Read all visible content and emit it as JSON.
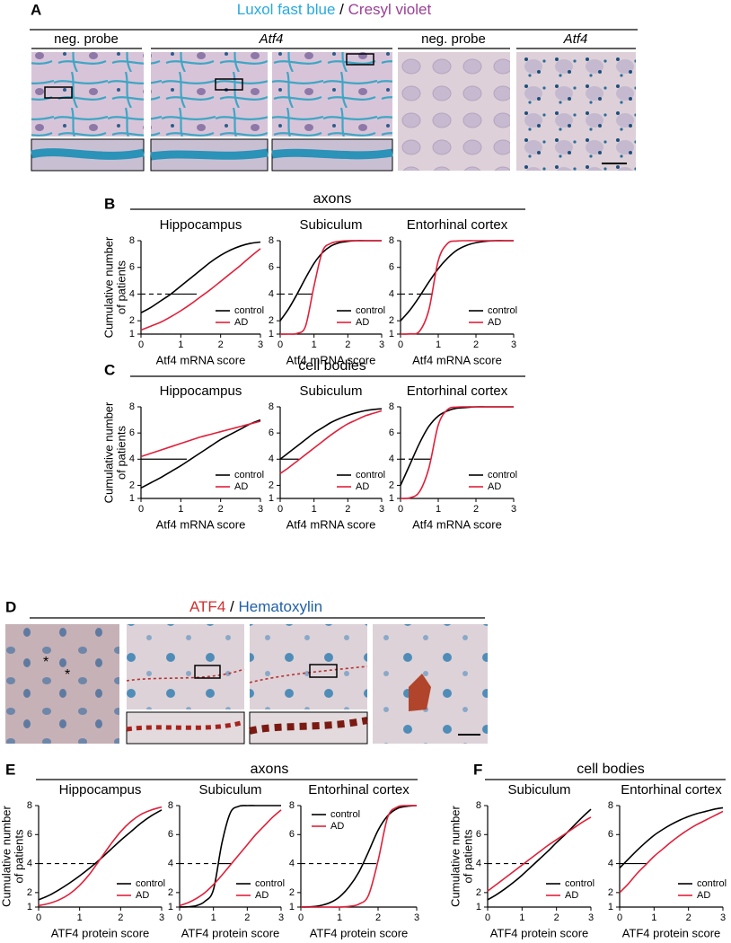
{
  "figure": {
    "panel_labels": [
      "A",
      "B",
      "C",
      "D",
      "E",
      "F"
    ],
    "A": {
      "stain": [
        "Luxol fast blue",
        "/",
        "Cresyl violet"
      ],
      "subheaders": [
        "neg. probe",
        "Atf4",
        "neg. probe",
        "Atf4"
      ]
    },
    "D": {
      "stain": [
        "ATF4",
        "/",
        "Hematoxylin"
      ],
      "annotations": [
        "*",
        "*"
      ]
    },
    "group_headers": [
      "axons",
      "cell bodies",
      "axons",
      "cell bodies"
    ]
  },
  "chart_data": [
    {
      "type": "line",
      "title": "Hippocampus",
      "xlabel": "Atf4 mRNA score",
      "ylabel": [
        "Cumulative number",
        "of patients"
      ],
      "x": [
        0,
        0.25,
        0.5,
        0.75,
        1,
        1.25,
        1.5,
        1.75,
        2,
        2.25,
        2.5,
        2.75,
        3
      ],
      "series": [
        {
          "name": "control",
          "color": "#000000",
          "values": [
            2.6,
            3.0,
            3.5,
            4.0,
            4.6,
            5.2,
            5.8,
            6.4,
            6.9,
            7.3,
            7.6,
            7.8,
            7.9
          ]
        },
        {
          "name": "AD",
          "color": "#e0203a",
          "values": [
            1.3,
            1.6,
            1.9,
            2.3,
            2.75,
            3.25,
            3.8,
            4.35,
            4.95,
            5.55,
            6.15,
            6.8,
            7.4
          ]
        }
      ],
      "median_line": {
        "y": 4,
        "x": [
          0,
          0.75,
          1.4
        ]
      },
      "xlim": [
        0,
        3
      ],
      "xticks": [
        0,
        1,
        2,
        3
      ],
      "ylim": [
        1,
        8
      ],
      "yticks": [
        1,
        2,
        4,
        6,
        8
      ],
      "legend": "lower right"
    },
    {
      "type": "line",
      "title": "Subiculum",
      "xlabel": "Atf4 mRNA score",
      "x": [
        0,
        0.25,
        0.5,
        0.75,
        1,
        1.25,
        1.5,
        1.75,
        2,
        2.25,
        2.5,
        2.75,
        3
      ],
      "series": [
        {
          "name": "control",
          "color": "#000000",
          "values": [
            2.0,
            2.9,
            4.0,
            5.2,
            6.3,
            7.1,
            7.6,
            7.85,
            7.95,
            8,
            8,
            8,
            8
          ]
        },
        {
          "name": "AD",
          "color": "#e0203a",
          "values": [
            1,
            1,
            1.05,
            1.6,
            4.6,
            7.2,
            7.8,
            7.95,
            8,
            8,
            8,
            8,
            8
          ]
        }
      ],
      "median_line": {
        "y": 4,
        "x": [
          0,
          0.5,
          0.95
        ]
      },
      "xlim": [
        0,
        3
      ],
      "xticks": [
        0,
        1,
        2,
        3
      ],
      "ylim": [
        1,
        8
      ],
      "yticks": [
        1,
        2,
        4,
        6,
        8
      ],
      "legend": "lower right"
    },
    {
      "type": "line",
      "title": "Entorhinal cortex",
      "xlabel": "Atf4 mRNA score",
      "x": [
        0,
        0.25,
        0.5,
        0.75,
        1,
        1.25,
        1.5,
        1.75,
        2,
        2.25,
        2.5,
        2.75,
        3
      ],
      "series": [
        {
          "name": "control",
          "color": "#000000",
          "values": [
            2,
            2.8,
            3.8,
            4.9,
            5.9,
            6.7,
            7.3,
            7.65,
            7.85,
            7.95,
            8,
            8,
            8
          ]
        },
        {
          "name": "AD",
          "color": "#e0203a",
          "values": [
            1,
            1.02,
            1.2,
            2.8,
            6.5,
            7.8,
            7.98,
            8,
            8,
            8,
            8,
            8,
            8
          ]
        }
      ],
      "median_line": {
        "y": 4,
        "x": [
          0,
          0.55,
          0.85
        ]
      },
      "xlim": [
        0,
        3
      ],
      "xticks": [
        0,
        1,
        2,
        3
      ],
      "ylim": [
        1,
        8
      ],
      "yticks": [
        1,
        2,
        4,
        6,
        8
      ],
      "legend": "lower right"
    },
    {
      "type": "line",
      "title": "Hippocampus",
      "xlabel": "Atf4 mRNA score",
      "ylabel": [
        "Cumulative number",
        "of patients"
      ],
      "x": [
        0,
        0.25,
        0.5,
        0.75,
        1,
        1.25,
        1.5,
        1.75,
        2,
        2.25,
        2.5,
        2.75,
        3
      ],
      "series": [
        {
          "name": "control",
          "color": "#000000",
          "values": [
            1.8,
            2.2,
            2.6,
            3.05,
            3.5,
            4.0,
            4.5,
            5.0,
            5.5,
            5.9,
            6.3,
            6.7,
            7.0
          ]
        },
        {
          "name": "AD",
          "color": "#e0203a",
          "values": [
            4.2,
            4.45,
            4.7,
            4.95,
            5.2,
            5.45,
            5.7,
            5.9,
            6.1,
            6.3,
            6.5,
            6.7,
            6.9
          ]
        }
      ],
      "median_line": {
        "y": 4,
        "x": [
          0,
          0,
          1.15
        ]
      },
      "xlim": [
        0,
        3
      ],
      "xticks": [
        0,
        1,
        2,
        3
      ],
      "ylim": [
        1,
        8
      ],
      "yticks": [
        1,
        2,
        4,
        6,
        8
      ],
      "legend": "lower right"
    },
    {
      "type": "line",
      "title": "Subiculum",
      "xlabel": "Atf4 mRNA score",
      "x": [
        0,
        0.25,
        0.5,
        0.75,
        1,
        1.25,
        1.5,
        1.75,
        2,
        2.25,
        2.5,
        2.75,
        3
      ],
      "series": [
        {
          "name": "control",
          "color": "#000000",
          "values": [
            4.0,
            4.5,
            5.0,
            5.5,
            6.0,
            6.4,
            6.8,
            7.1,
            7.35,
            7.55,
            7.7,
            7.8,
            7.85
          ]
        },
        {
          "name": "AD",
          "color": "#e0203a",
          "values": [
            2.9,
            3.35,
            3.85,
            4.35,
            4.85,
            5.35,
            5.85,
            6.3,
            6.7,
            7.0,
            7.3,
            7.5,
            7.7
          ]
        }
      ],
      "median_line": {
        "y": 4,
        "x": [
          0,
          0,
          0.55
        ]
      },
      "xlim": [
        0,
        3
      ],
      "xticks": [
        0,
        1,
        2,
        3
      ],
      "ylim": [
        1,
        8
      ],
      "yticks": [
        1,
        2,
        4,
        6,
        8
      ],
      "legend": "lower right"
    },
    {
      "type": "line",
      "title": "Entorhinal cortex",
      "xlabel": "Atf4 mRNA score",
      "x": [
        0,
        0.25,
        0.5,
        0.75,
        1,
        1.25,
        1.5,
        1.75,
        2,
        2.25,
        2.5,
        2.75,
        3
      ],
      "series": [
        {
          "name": "control",
          "color": "#000000",
          "values": [
            2.0,
            3.6,
            5.2,
            6.5,
            7.3,
            7.7,
            7.9,
            7.95,
            8,
            8,
            8,
            8,
            8
          ]
        },
        {
          "name": "AD",
          "color": "#e0203a",
          "values": [
            1,
            1.05,
            1.5,
            3.3,
            6.6,
            7.8,
            7.98,
            8,
            8,
            8,
            8,
            8,
            8
          ]
        }
      ],
      "median_line": {
        "y": 4,
        "x": [
          0,
          0.35,
          0.8
        ]
      },
      "xlim": [
        0,
        3
      ],
      "xticks": [
        0,
        1,
        2,
        3
      ],
      "ylim": [
        1,
        8
      ],
      "yticks": [
        1,
        2,
        4,
        6,
        8
      ],
      "legend": "lower right"
    },
    {
      "type": "line",
      "title": "Hippocampus",
      "xlabel": "ATF4 protein score",
      "ylabel": [
        "Cumulative number",
        "of patients"
      ],
      "x": [
        0,
        0.25,
        0.5,
        0.75,
        1,
        1.25,
        1.5,
        1.75,
        2,
        2.25,
        2.5,
        2.75,
        3
      ],
      "series": [
        {
          "name": "control",
          "color": "#000000",
          "values": [
            1.5,
            1.8,
            2.2,
            2.65,
            3.15,
            3.7,
            4.3,
            4.95,
            5.6,
            6.2,
            6.8,
            7.3,
            7.7
          ]
        },
        {
          "name": "AD",
          "color": "#e0203a",
          "values": [
            1.1,
            1.25,
            1.5,
            1.9,
            2.5,
            3.3,
            4.3,
            5.3,
            6.2,
            6.9,
            7.4,
            7.7,
            7.9
          ]
        }
      ],
      "median_line": {
        "y": 4,
        "x": [
          0,
          1.3,
          1.45
        ]
      },
      "xlim": [
        0,
        3
      ],
      "xticks": [
        0,
        1,
        2,
        3
      ],
      "ylim": [
        1,
        8
      ],
      "yticks": [
        1,
        2,
        4,
        6,
        8
      ],
      "legend": "lower right"
    },
    {
      "type": "line",
      "title": "Subiculum",
      "xlabel": "ATF4 protein score",
      "x": [
        0,
        0.25,
        0.5,
        0.75,
        1,
        1.25,
        1.5,
        1.75,
        2,
        2.25,
        2.5,
        2.75,
        3
      ],
      "series": [
        {
          "name": "control",
          "color": "#000000",
          "values": [
            1,
            1.02,
            1.1,
            1.4,
            2.2,
            5.4,
            7.5,
            7.95,
            8,
            8,
            8,
            8,
            8
          ]
        },
        {
          "name": "AD",
          "color": "#e0203a",
          "values": [
            1.1,
            1.3,
            1.6,
            2.0,
            2.55,
            3.2,
            3.9,
            4.6,
            5.3,
            6.0,
            6.6,
            7.2,
            7.7
          ]
        }
      ],
      "median_line": {
        "y": 4,
        "x": [
          0,
          1.15,
          1.55
        ]
      },
      "xlim": [
        0,
        3
      ],
      "xticks": [
        0,
        1,
        2,
        3
      ],
      "ylim": [
        1,
        8
      ],
      "yticks": [
        1,
        2,
        4,
        6,
        8
      ],
      "legend": "lower right"
    },
    {
      "type": "line",
      "title": "Entorhinal cortex",
      "xlabel": "ATF4 protein score",
      "x": [
        0,
        0.25,
        0.5,
        0.75,
        1,
        1.25,
        1.5,
        1.75,
        2,
        2.25,
        2.5,
        2.75,
        3
      ],
      "series": [
        {
          "name": "control",
          "color": "#000000",
          "values": [
            1,
            1.02,
            1.1,
            1.3,
            1.7,
            2.4,
            3.4,
            4.8,
            6.3,
            7.3,
            7.8,
            7.95,
            8
          ]
        },
        {
          "name": "AD",
          "color": "#e0203a",
          "values": [
            1,
            1,
            1,
            1,
            1,
            1.05,
            1.2,
            1.8,
            4.2,
            7.2,
            7.9,
            8,
            8
          ]
        }
      ],
      "median_line": {
        "y": 4,
        "x": [
          0,
          1.6,
          1.95
        ]
      },
      "xlim": [
        0,
        3
      ],
      "xticks": [
        0,
        1,
        2,
        3
      ],
      "ylim": [
        1,
        8
      ],
      "yticks": [
        1,
        2,
        4,
        6,
        8
      ],
      "legend": "upper left"
    },
    {
      "type": "line",
      "title": "Subiculum",
      "xlabel": "ATF4 protein score",
      "ylabel": [
        "Cumulative number",
        "of patients"
      ],
      "x": [
        0,
        0.25,
        0.5,
        0.75,
        1,
        1.25,
        1.5,
        1.75,
        2,
        2.25,
        2.5,
        2.75,
        3
      ],
      "series": [
        {
          "name": "control",
          "color": "#000000",
          "values": [
            1.5,
            1.85,
            2.25,
            2.7,
            3.2,
            3.75,
            4.3,
            4.85,
            5.45,
            6.0,
            6.6,
            7.2,
            7.75
          ]
        },
        {
          "name": "AD",
          "color": "#e0203a",
          "values": [
            2.1,
            2.55,
            3.0,
            3.45,
            3.9,
            4.35,
            4.8,
            5.25,
            5.65,
            6.05,
            6.45,
            6.85,
            7.2
          ]
        }
      ],
      "median_line": {
        "y": 4,
        "x": [
          0,
          1.05,
          1.2
        ]
      },
      "xlim": [
        0,
        3
      ],
      "xticks": [
        0,
        1,
        2,
        3
      ],
      "ylim": [
        1,
        8
      ],
      "yticks": [
        1,
        2,
        4,
        6,
        8
      ],
      "legend": "lower right"
    },
    {
      "type": "line",
      "title": "Entorhinal cortex",
      "xlabel": "ATF4 protein score",
      "x": [
        0,
        0.25,
        0.5,
        0.75,
        1,
        1.25,
        1.5,
        1.75,
        2,
        2.25,
        2.5,
        2.75,
        3
      ],
      "series": [
        {
          "name": "control",
          "color": "#000000",
          "values": [
            3.7,
            4.3,
            4.9,
            5.45,
            5.95,
            6.35,
            6.7,
            7.0,
            7.25,
            7.45,
            7.6,
            7.75,
            7.85
          ]
        },
        {
          "name": "AD",
          "color": "#e0203a",
          "values": [
            2,
            2.6,
            3.3,
            3.9,
            4.5,
            5.0,
            5.5,
            5.95,
            6.35,
            6.7,
            7.0,
            7.3,
            7.6
          ]
        }
      ],
      "median_line": {
        "y": 4,
        "x": [
          0,
          0,
          0.8
        ]
      },
      "xlim": [
        0,
        3
      ],
      "xticks": [
        0,
        1,
        2,
        3
      ],
      "ylim": [
        1,
        8
      ],
      "yticks": [
        1,
        2,
        4,
        6,
        8
      ],
      "legend": "lower right"
    }
  ]
}
